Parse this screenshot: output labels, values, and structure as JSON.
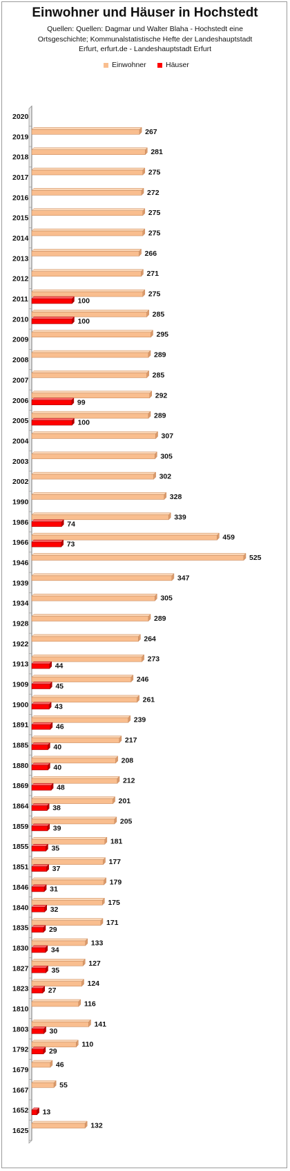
{
  "chart_data": {
    "type": "bar",
    "orientation": "horizontal",
    "title": "Einwohner und Häuser in Hochstedt",
    "subtitle": "Quellen: Quellen: Dagmar und Walter Blaha - Hochstedt eine Ortsgeschichte; Kommunalstatistische Hefte der Landeshauptstadt Erfurt, erfurt.de - Landeshauptstadt Erfurt",
    "xlabel": "",
    "ylabel": "",
    "xlim": [
      0,
      525
    ],
    "grid": false,
    "legend_position": "top",
    "categories": [
      "2020",
      "2019",
      "2018",
      "2017",
      "2016",
      "2015",
      "2014",
      "2013",
      "2012",
      "2011",
      "2010",
      "2009",
      "2008",
      "2007",
      "2006",
      "2005",
      "2004",
      "2003",
      "2002",
      "1990",
      "1986",
      "1966",
      "1946",
      "1939",
      "1934",
      "1928",
      "1922",
      "1913",
      "1909",
      "1900",
      "1891",
      "1885",
      "1880",
      "1869",
      "1864",
      "1859",
      "1855",
      "1851",
      "1846",
      "1840",
      "1835",
      "1830",
      "1827",
      "1823",
      "1810",
      "1803",
      "1792",
      "1679",
      "1667",
      "1652",
      "1625"
    ],
    "series": [
      {
        "name": "Einwohner",
        "color": "#F9BE8F",
        "values": [
          null,
          267,
          281,
          275,
          272,
          275,
          275,
          266,
          271,
          275,
          285,
          295,
          289,
          285,
          292,
          289,
          307,
          305,
          302,
          328,
          339,
          459,
          525,
          347,
          305,
          289,
          264,
          273,
          246,
          261,
          239,
          217,
          208,
          212,
          201,
          205,
          181,
          177,
          179,
          175,
          171,
          133,
          127,
          124,
          116,
          141,
          110,
          46,
          55,
          null,
          132
        ]
      },
      {
        "name": "Häuser",
        "color": "#FF0000",
        "values": [
          null,
          null,
          null,
          null,
          null,
          null,
          null,
          null,
          null,
          100,
          100,
          null,
          null,
          null,
          99,
          100,
          null,
          null,
          null,
          null,
          74,
          73,
          null,
          null,
          null,
          null,
          null,
          44,
          45,
          43,
          46,
          40,
          40,
          48,
          38,
          39,
          35,
          37,
          31,
          32,
          29,
          34,
          35,
          27,
          null,
          30,
          29,
          null,
          null,
          13,
          null
        ]
      }
    ]
  }
}
